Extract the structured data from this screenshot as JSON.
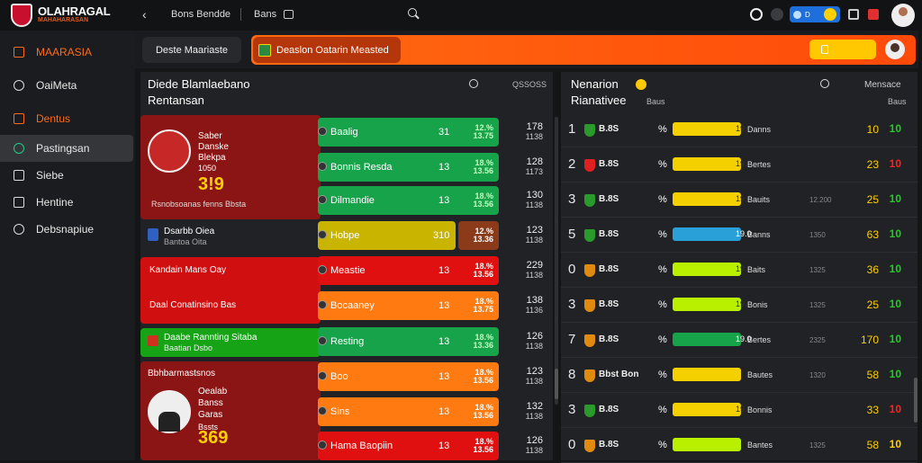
{
  "brand": {
    "title": "OLAHRAGAL",
    "subtitle": "MAHAHARASAN"
  },
  "topnav": {
    "item1": "Bons Bendde",
    "item2": "Bans"
  },
  "top_right": {
    "pill_text": "D"
  },
  "sidebar": {
    "items": [
      {
        "label": "MAARASIA",
        "icon": "shield-icon",
        "accent": true
      },
      {
        "label": "OaiMeta",
        "icon": "ball-icon"
      },
      {
        "label": "Dentus",
        "icon": "folder-icon",
        "accent": true
      },
      {
        "label": "Pastingsan",
        "icon": "globe-icon",
        "active": true
      },
      {
        "label": "Siebe",
        "icon": "chart-icon"
      },
      {
        "label": "Hentine",
        "icon": "monitor-icon"
      },
      {
        "label": "Debsnapiue",
        "icon": "globe-icon"
      }
    ]
  },
  "header": {
    "pill1": "Deste Maariaste",
    "pill2": "Deaslon Oatarin Measted"
  },
  "left_panel": {
    "title": "Diede Blamlaebano",
    "subtitle": "Rentansan",
    "stat": "QSSOSS"
  },
  "right_panel": {
    "title": "Nenarion",
    "subtitle": "Rianativee",
    "col": "Baus",
    "stat": "Mensace"
  },
  "player1": {
    "name": "Saber",
    "line2": "Danske",
    "line3": "Blekpa",
    "line4": "1050",
    "score": "3!9",
    "caption": "Rsnobsoanas fenns Bbsta"
  },
  "player2": {
    "name": "Oealab",
    "line2": "Banss",
    "line3": "Garas",
    "line4": "Bssts",
    "score": "369"
  },
  "left_rows": [
    {
      "name": "Baalig",
      "v1": "31",
      "v2": "12.% 13.75",
      "num1": "178",
      "num2": "1138",
      "color": "#16a34a"
    },
    {
      "name": "Bonnis Resda",
      "v1": "13",
      "v2": "18.% 13.56",
      "num1": "128",
      "num2": "1173",
      "color": "#16a34a"
    },
    {
      "name": "Dilmandie",
      "v1": "13",
      "v2": "18.% 13.56",
      "num1": "130",
      "num2": "1138",
      "color": "#16a34a"
    },
    {
      "name": "Hobpe",
      "v1": "310",
      "v2": "12.% 13.36",
      "num1": "123",
      "num2": "1138",
      "color": "#c9b400"
    },
    {
      "name": "Meastie",
      "v1": "13",
      "v2": "18.% 13.56",
      "num1": "229",
      "num2": "1138",
      "color": "#e01010"
    },
    {
      "name": "Bocaaney",
      "v1": "13",
      "v2": "18.% 13.75",
      "num1": "138",
      "num2": "1136",
      "color": "#ff7a10"
    },
    {
      "name": "Resting",
      "v1": "13",
      "v2": "18.% 13.36",
      "num1": "126",
      "num2": "1138",
      "color": "#16a34a"
    },
    {
      "name": "Boo",
      "v1": "13",
      "v2": "18.% 13.56",
      "num1": "123",
      "num2": "1138",
      "color": "#ff7a10"
    },
    {
      "name": "Sins",
      "v1": "13",
      "v2": "18.% 13.56",
      "num1": "132",
      "num2": "1138",
      "color": "#ff7a10"
    },
    {
      "name": "Hama Baopiin",
      "v1": "13",
      "v2": "18.% 13.56",
      "num1": "126",
      "num2": "1138",
      "color": "#e01010"
    }
  ],
  "left_labels": [
    {
      "text": "Dsarbb Oiea",
      "sub": "Bantoa Oita"
    },
    {
      "text": "Kandain Mans Oay"
    },
    {
      "text": "Daal Conatinsino Bas"
    },
    {
      "text": "Daabe Rannting Sitaba",
      "sub": "Baatian Dsbo"
    },
    {
      "text": "Bbhbarmastsnos"
    }
  ],
  "right_rows": [
    {
      "rank": "1",
      "name": "B.8S",
      "pct": "%",
      "bar": "19.0",
      "label": "Danns",
      "small": "",
      "v1": "10",
      "v2": "10",
      "bar_color": "#f5d000",
      "v2_color": "#22cc22",
      "badge": "#2a9a2a"
    },
    {
      "rank": "2",
      "name": "B.8S",
      "pct": "%",
      "bar": "19.0",
      "label": "Bertes",
      "small": "",
      "v1": "23",
      "v2": "10",
      "bar_color": "#f5d000",
      "v2_color": "#ff2020",
      "badge": "#e02020"
    },
    {
      "rank": "3",
      "name": "B.8S",
      "pct": "%",
      "bar": "19.0",
      "label": "Bauits",
      "small": "12.200",
      "v1": "25",
      "v2": "10",
      "bar_color": "#f5d000",
      "v2_color": "#22cc22",
      "badge": "#2a9a2a"
    },
    {
      "rank": "5",
      "name": "B.8S",
      "pct": "%",
      "bar": "19.0",
      "label": "Banns",
      "small": "1350",
      "v1": "63",
      "v2": "10",
      "bar_color": "#2aa0d8",
      "v2_color": "#22cc22",
      "badge": "#2a9a2a"
    },
    {
      "rank": "0",
      "name": "B.8S",
      "pct": "%",
      "bar": "19.0",
      "label": "Baits",
      "small": "1325",
      "v1": "36",
      "v2": "10",
      "bar_color": "#b8f000",
      "v2_color": "#22cc22",
      "badge": "#e08a10"
    },
    {
      "rank": "3",
      "name": "B.8S",
      "pct": "%",
      "bar": "19.0",
      "label": "Bonis",
      "small": "1325",
      "v1": "25",
      "v2": "10",
      "bar_color": "#b8f000",
      "v2_color": "#22cc22",
      "badge": "#e08a10"
    },
    {
      "rank": "7",
      "name": "B.8S",
      "pct": "%",
      "bar": "19.0",
      "label": "Bertes",
      "small": "2325",
      "v1": "170",
      "v2": "10",
      "bar_color": "#16a34a",
      "v2_color": "#22cc22",
      "badge": "#e08a10"
    },
    {
      "rank": "8",
      "name": "Bbst Bon",
      "pct": "%",
      "bar": "",
      "label": "Bautes",
      "small": "1320",
      "v1": "58",
      "v2": "10",
      "bar_color": "#f5d000",
      "v2_color": "#22cc22",
      "badge": "#e08a10"
    },
    {
      "rank": "3",
      "name": "B.8S",
      "pct": "%",
      "bar": "19.0",
      "label": "Bonnis",
      "small": "",
      "v1": "33",
      "v2": "10",
      "bar_color": "#f5d000",
      "v2_color": "#ff2020",
      "badge": "#2a9a2a"
    },
    {
      "rank": "0",
      "name": "B.8S",
      "pct": "%",
      "bar": "",
      "label": "Bantes",
      "small": "1325",
      "v1": "58",
      "v2": "10",
      "bar_color": "#b8f000",
      "v2_color": "#ffd000",
      "badge": "#e08a10"
    }
  ]
}
